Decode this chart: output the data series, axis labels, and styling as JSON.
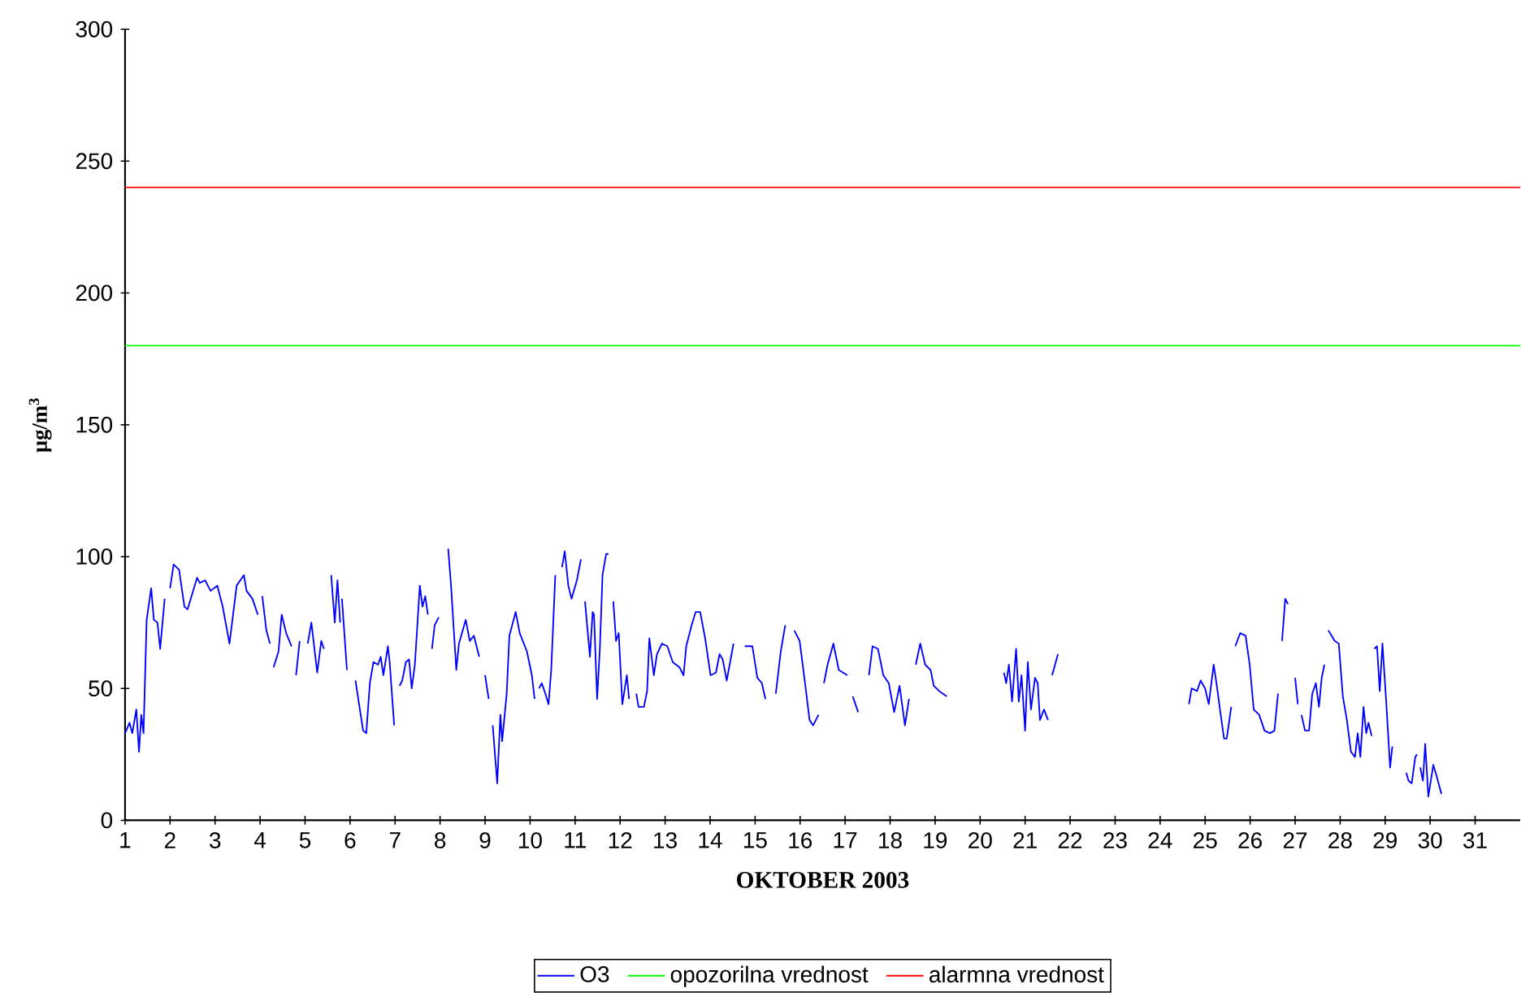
{
  "chart_data": {
    "type": "line",
    "xlabel": "OKTOBER 2003",
    "ylabel": "µg/m$^{3}$",
    "xlim": [
      1,
      32
    ],
    "ylim": [
      0,
      300
    ],
    "xticks": [
      1,
      2,
      3,
      4,
      5,
      6,
      7,
      8,
      9,
      10,
      11,
      12,
      13,
      14,
      15,
      16,
      17,
      18,
      19,
      20,
      21,
      22,
      23,
      24,
      25,
      26,
      27,
      28,
      29,
      30,
      31
    ],
    "yticks": [
      0,
      50,
      100,
      150,
      200,
      250,
      300
    ],
    "grid": false,
    "legend": "bottom",
    "marker": "none",
    "line_style": "solid",
    "series": [
      {
        "name": "O3",
        "color": "#0000ff",
        "x": [
          1.0,
          1.1,
          1.16,
          1.25,
          1.31,
          1.36,
          1.41,
          1.48,
          1.58,
          1.64,
          1.72,
          1.78,
          1.88,
          1.94,
          2.0,
          2.08,
          2.2,
          2.32,
          2.39,
          2.6,
          2.66,
          2.78,
          2.9,
          3.05,
          3.17,
          3.32,
          3.48,
          3.64,
          3.7,
          3.83,
          3.95,
          4.0,
          4.05,
          4.14,
          4.22,
          4.26,
          4.3,
          4.41,
          4.48,
          4.58,
          4.7,
          4.75,
          4.8,
          4.88,
          4.97,
          5.06,
          5.14,
          5.27,
          5.36,
          5.42,
          5.5,
          5.58,
          5.66,
          5.72,
          5.78,
          5.8,
          5.82,
          5.93,
          6.02,
          6.12,
          6.2,
          6.29,
          6.36,
          6.44,
          6.52,
          6.62,
          6.68,
          6.74,
          6.84,
          6.88,
          6.98,
          7.04,
          7.1,
          7.16,
          7.24,
          7.31,
          7.37,
          7.44,
          7.55,
          7.61,
          7.67,
          7.73,
          7.78,
          7.82,
          7.88,
          7.97,
          8.08,
          8.18,
          8.24,
          8.36,
          8.42,
          8.57,
          8.66,
          8.75,
          8.87,
          8.94,
          9.0,
          9.08,
          9.12,
          9.17,
          9.27,
          9.34,
          9.38,
          9.48,
          9.54,
          9.68,
          9.77,
          9.93,
          10.04,
          10.1,
          10.15,
          10.2,
          10.26,
          10.34,
          10.41,
          10.47,
          10.56,
          10.64,
          10.71,
          10.77,
          10.85,
          10.92,
          11.04,
          11.13,
          11.18,
          11.22,
          11.33,
          11.39,
          11.42,
          11.49,
          11.55,
          11.61,
          11.69,
          11.74,
          11.8,
          11.85,
          11.91,
          11.97,
          12.05,
          12.15,
          12.2,
          12.28,
          12.36,
          12.41,
          12.53,
          12.6,
          12.65,
          12.75,
          12.82,
          12.93,
          13.05,
          13.17,
          13.32,
          13.41,
          13.47,
          13.59,
          13.68,
          13.78,
          13.89,
          14.01,
          14.13,
          14.21,
          14.28,
          14.37,
          14.52,
          14.64,
          14.77,
          14.94,
          15.05,
          15.15,
          15.23,
          15.35,
          15.46,
          15.57,
          15.67,
          15.77,
          15.87,
          15.99,
          16.11,
          16.21,
          16.29,
          16.41,
          16.47,
          16.53,
          16.61,
          16.74,
          16.86,
          17.05,
          17.11,
          17.17,
          17.29,
          17.41,
          17.53,
          17.61,
          17.73,
          17.85,
          17.97,
          18.09,
          18.21,
          18.33,
          18.42,
          18.5,
          18.57,
          18.67,
          18.78,
          18.9,
          18.97,
          19.09,
          19.26,
          19.9,
          20.53,
          20.58,
          20.64,
          20.71,
          20.8,
          20.86,
          20.92,
          21.0,
          21.06,
          21.13,
          21.22,
          21.28,
          21.33,
          21.42,
          21.51,
          21.55,
          21.6,
          21.73,
          23.2,
          24.64,
          24.7,
          24.82,
          24.9,
          25.0,
          25.08,
          25.19,
          25.26,
          25.33,
          25.42,
          25.48,
          25.58,
          25.62,
          25.67,
          25.78,
          25.9,
          25.99,
          26.08,
          26.2,
          26.32,
          26.44,
          26.54,
          26.62,
          26.66,
          26.71,
          26.78,
          26.84,
          26.92,
          27.0,
          27.06,
          27.1,
          27.14,
          27.22,
          27.31,
          27.38,
          27.46,
          27.53,
          27.59,
          27.65,
          27.7,
          27.74,
          27.88,
          27.97,
          28.06,
          28.15,
          28.24,
          28.33,
          28.39,
          28.45,
          28.52,
          28.58,
          28.63,
          28.7,
          28.73,
          28.76,
          28.82,
          28.88,
          28.94,
          29.02,
          29.11,
          29.16,
          29.3,
          29.47,
          29.52,
          29.59,
          29.67,
          29.71,
          29.75,
          29.78,
          29.84,
          29.89,
          29.96,
          30.07,
          30.14,
          30.25
        ],
        "values": [
          33,
          37,
          33,
          42,
          26,
          40,
          33,
          76,
          88,
          76,
          75,
          65,
          84,
          null,
          88,
          97,
          95,
          81,
          80,
          92,
          90,
          91,
          87,
          89,
          81,
          67,
          89,
          93,
          87,
          84,
          78,
          null,
          85,
          72,
          67,
          null,
          58,
          64,
          78,
          71,
          66,
          null,
          55,
          68,
          null,
          67,
          75,
          56,
          68,
          65,
          null,
          93,
          75,
          91,
          75,
          null,
          84,
          57,
          null,
          53,
          44,
          34,
          33,
          52,
          60,
          59,
          62,
          55,
          66,
          60,
          36,
          null,
          51,
          53,
          60,
          61,
          50,
          59,
          89,
          81,
          85,
          78,
          null,
          65,
          74,
          77,
          null,
          103,
          90,
          57,
          67,
          76,
          68,
          70,
          62,
          null,
          55,
          46,
          null,
          36,
          14,
          40,
          30,
          48,
          70,
          79,
          71,
          64,
          55,
          46,
          null,
          50,
          52,
          48,
          44,
          57,
          93,
          null,
          96,
          102,
          89,
          84,
          91,
          99,
          null,
          83,
          62,
          79,
          78,
          46,
          65,
          93,
          101,
          101,
          null,
          83,
          68,
          71,
          44,
          55,
          46,
          null,
          48,
          43,
          43,
          49,
          69,
          55,
          63,
          67,
          66,
          60,
          58,
          55,
          66,
          74,
          79,
          79,
          69,
          55,
          56,
          63,
          61,
          53,
          67,
          null,
          66,
          66,
          54,
          52,
          46,
          null,
          48,
          64,
          74,
          null,
          72,
          68,
          52,
          38,
          36,
          40,
          null,
          52,
          59,
          67,
          57,
          55,
          null,
          47,
          41,
          null,
          55,
          66,
          65,
          55,
          52,
          41,
          51,
          36,
          46,
          null,
          59,
          67,
          59,
          57,
          51,
          49,
          47,
          null,
          56,
          52,
          59,
          45,
          65,
          45,
          55,
          34,
          60,
          42,
          54,
          52,
          38,
          42,
          38,
          null,
          55,
          63,
          null,
          44,
          50,
          49,
          53,
          50,
          44,
          59,
          51,
          42,
          31,
          31,
          43,
          null,
          66,
          71,
          70,
          59,
          42,
          40,
          34,
          33,
          34,
          48,
          null,
          68,
          84,
          82,
          null,
          54,
          44,
          null,
          40,
          34,
          34,
          48,
          52,
          43,
          54,
          59,
          null,
          72,
          68,
          67,
          47,
          38,
          26,
          24,
          33,
          24,
          43,
          33,
          37,
          32,
          null,
          65,
          66,
          49,
          67,
          46,
          20,
          28,
          null,
          18,
          15,
          14,
          24,
          25,
          null,
          20,
          15,
          29,
          9,
          21,
          17,
          10
        ]
      },
      {
        "name": "opozorilna vrednost",
        "color": "#00ff00",
        "x": [
          1,
          32
        ],
        "values": [
          180,
          180
        ]
      },
      {
        "name": "alarmna vrednost",
        "color": "#ff0000",
        "x": [
          1,
          32
        ],
        "values": [
          240,
          240
        ]
      }
    ]
  }
}
